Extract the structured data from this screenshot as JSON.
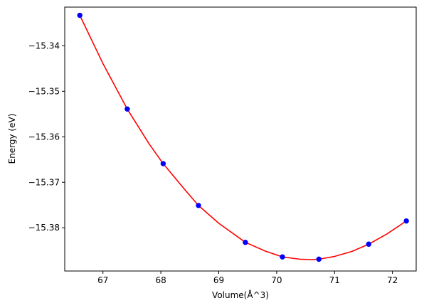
{
  "chart_data": {
    "type": "scatter",
    "title": "",
    "xlabel": "Volume(Å^3)",
    "ylabel": "Energy (eV)",
    "xlim": [
      66.34,
      72.41
    ],
    "ylim": [
      -15.3895,
      -15.3315
    ],
    "grid": false,
    "legend": "none",
    "x_ticks": [
      67,
      68,
      69,
      70,
      71,
      72
    ],
    "y_ticks": [
      -15.34,
      -15.35,
      -15.36,
      -15.37,
      -15.38
    ],
    "x_tick_labels": [
      "67",
      "68",
      "69",
      "70",
      "71",
      "72"
    ],
    "y_tick_labels": [
      "−15.34",
      "−15.35",
      "−15.36",
      "−15.37",
      "−15.38"
    ],
    "series": [
      {
        "kind": "points",
        "color": "#0000ff",
        "x": [
          66.6,
          67.42,
          68.04,
          68.65,
          69.46,
          70.1,
          70.73,
          71.59,
          72.24
        ],
        "y": [
          -15.3333,
          -15.3539,
          -15.3659,
          -15.3751,
          -15.3832,
          -15.3864,
          -15.3869,
          -15.3836,
          -15.3785
        ]
      },
      {
        "kind": "fit-curve",
        "color": "#ff0000",
        "x": [
          66.6,
          67.0,
          67.42,
          67.8,
          68.04,
          68.4,
          68.65,
          69.0,
          69.46,
          69.8,
          70.1,
          70.4,
          70.6,
          70.73,
          71.0,
          71.3,
          71.59,
          71.9,
          72.24
        ],
        "y": [
          -15.3333,
          -15.3439,
          -15.3539,
          -15.3616,
          -15.3659,
          -15.3714,
          -15.3751,
          -15.379,
          -15.3832,
          -15.3851,
          -15.3864,
          -15.3869,
          -15.387,
          -15.3869,
          -15.3863,
          -15.3852,
          -15.3836,
          -15.3814,
          -15.3785
        ]
      }
    ]
  }
}
